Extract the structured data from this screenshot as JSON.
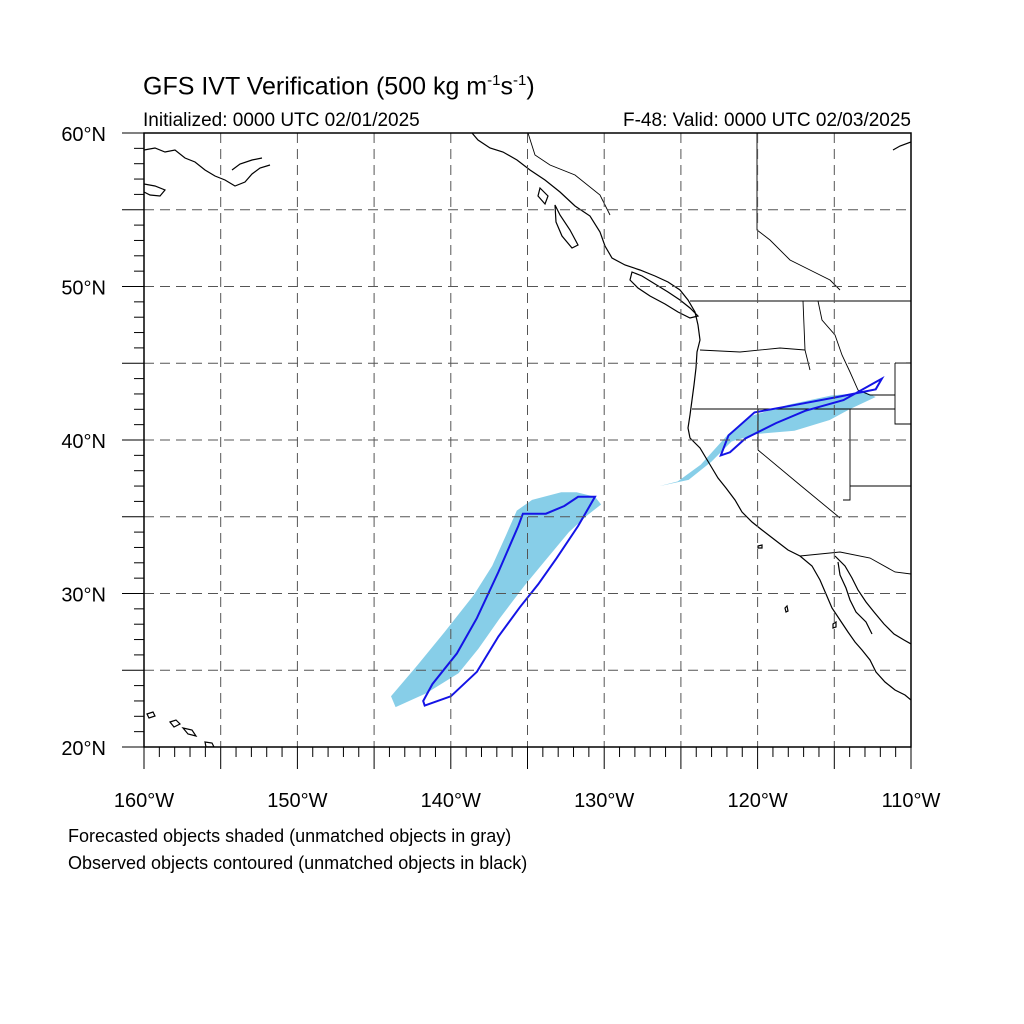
{
  "title": {
    "prefix": "GFS IVT Verification (500 kg m",
    "exp1": "-1",
    "mid": "s",
    "exp2": "-1",
    "suffix": ")"
  },
  "initialized_label": "Initialized: 0000 UTC 02/01/2025",
  "valid_label": "F-48: Valid: 0000 UTC 02/03/2025",
  "footnotes": [
    "Forecasted objects shaded (unmatched objects in gray)",
    "Observed objects contoured (unmatched objects in black)"
  ],
  "axes": {
    "lon_range": [
      -160,
      -110
    ],
    "lat_range": [
      20,
      60
    ],
    "lon_ticks": [
      {
        "value": -160,
        "label": "160°W"
      },
      {
        "value": -150,
        "label": "150°W"
      },
      {
        "value": -140,
        "label": "140°W"
      },
      {
        "value": -130,
        "label": "130°W"
      },
      {
        "value": -120,
        "label": "120°W"
      },
      {
        "value": -110,
        "label": "110°W"
      }
    ],
    "lat_ticks": [
      {
        "value": 20,
        "label": "20°N"
      },
      {
        "value": 30,
        "label": "30°N"
      },
      {
        "value": 40,
        "label": "40°N"
      },
      {
        "value": 50,
        "label": "50°N"
      },
      {
        "value": 60,
        "label": "60°N"
      }
    ],
    "grid_spacing_deg": 5,
    "grid": "dashed"
  },
  "colors": {
    "forecast_fill": "#87cee8",
    "observed_contour": "#1414e6",
    "coastline": "#000000",
    "grid": "#555555"
  },
  "forecast_objects": [
    {
      "name": "offshore plume",
      "lonlat": [
        [
          -143.6,
          22.6
        ],
        [
          -141.6,
          23.5
        ],
        [
          -139.5,
          24.8
        ],
        [
          -138.2,
          26.4
        ],
        [
          -136.8,
          28.4
        ],
        [
          -135.2,
          30.5
        ],
        [
          -133.8,
          32.2
        ],
        [
          -132.3,
          34.0
        ],
        [
          -131.1,
          35.1
        ],
        [
          -130.2,
          35.8
        ],
        [
          -130.6,
          36.3
        ],
        [
          -131.8,
          36.6
        ],
        [
          -132.8,
          36.6
        ],
        [
          -134.7,
          36.1
        ],
        [
          -135.7,
          35.4
        ],
        [
          -136.4,
          33.8
        ],
        [
          -137.3,
          31.8
        ],
        [
          -138.5,
          29.9
        ],
        [
          -140.4,
          27.5
        ],
        [
          -142.2,
          25.3
        ],
        [
          -143.9,
          23.3
        ]
      ]
    },
    {
      "name": "coastal plume",
      "lonlat": [
        [
          -126.4,
          37.0
        ],
        [
          -124.5,
          37.4
        ],
        [
          -123.0,
          38.6
        ],
        [
          -121.7,
          39.9
        ],
        [
          -120.0,
          40.4
        ],
        [
          -117.6,
          40.6
        ],
        [
          -115.3,
          41.3
        ],
        [
          -114.0,
          42.0
        ],
        [
          -112.3,
          42.8
        ],
        [
          -112.9,
          43.1
        ],
        [
          -115.2,
          42.9
        ],
        [
          -118.0,
          42.3
        ],
        [
          -120.3,
          41.6
        ],
        [
          -121.9,
          40.4
        ],
        [
          -123.7,
          38.4
        ],
        [
          -125.2,
          37.3
        ]
      ]
    }
  ],
  "observed_objects": [
    {
      "name": "offshore contour",
      "lonlat": [
        [
          -141.7,
          22.7
        ],
        [
          -140.0,
          23.3
        ],
        [
          -138.3,
          24.9
        ],
        [
          -136.9,
          27.2
        ],
        [
          -135.5,
          29.1
        ],
        [
          -134.3,
          30.6
        ],
        [
          -133.1,
          32.3
        ],
        [
          -131.7,
          34.4
        ],
        [
          -130.6,
          36.3
        ],
        [
          -131.7,
          36.3
        ],
        [
          -132.6,
          35.7
        ],
        [
          -133.8,
          35.2
        ],
        [
          -135.3,
          35.2
        ],
        [
          -135.6,
          34.4
        ],
        [
          -136.9,
          31.4
        ],
        [
          -138.3,
          28.4
        ],
        [
          -139.6,
          26.1
        ],
        [
          -141.2,
          24.1
        ],
        [
          -141.8,
          23.0
        ]
      ]
    },
    {
      "name": "coastal contour",
      "lonlat": [
        [
          -122.4,
          39.0
        ],
        [
          -121.9,
          40.3
        ],
        [
          -120.2,
          41.8
        ],
        [
          -118.0,
          42.2
        ],
        [
          -114.8,
          42.8
        ],
        [
          -112.3,
          43.3
        ],
        [
          -111.9,
          44.0
        ],
        [
          -114.4,
          42.6
        ],
        [
          -116.9,
          41.9
        ],
        [
          -118.8,
          41.1
        ],
        [
          -120.8,
          40.1
        ],
        [
          -121.8,
          39.2
        ]
      ]
    }
  ]
}
